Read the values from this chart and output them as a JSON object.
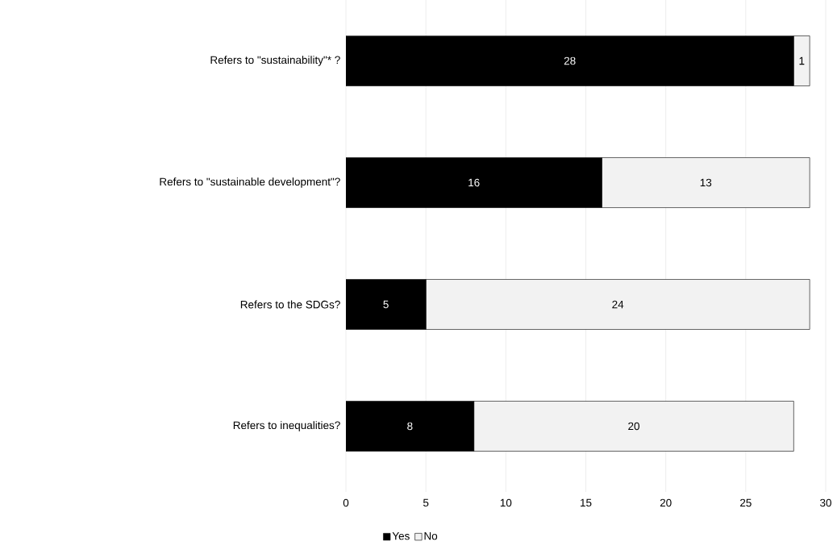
{
  "chart_data": {
    "type": "bar",
    "orientation": "horizontal",
    "stacked": true,
    "categories": [
      "Refers to \"sustainability\"* ?",
      "Refers to \"sustainable development\"?",
      "Refers to the SDGs?",
      "Refers to inequalities?"
    ],
    "series": [
      {
        "name": "Yes",
        "color": "#000000",
        "values": [
          28,
          16,
          5,
          8
        ]
      },
      {
        "name": "No",
        "color": "#f2f2f2",
        "values": [
          1,
          13,
          24,
          20
        ]
      }
    ],
    "xlim": [
      0,
      30
    ],
    "xticks": [
      0,
      5,
      10,
      15,
      20,
      25,
      30
    ],
    "grid": "x",
    "data_labels": true,
    "legend": "bottom"
  }
}
